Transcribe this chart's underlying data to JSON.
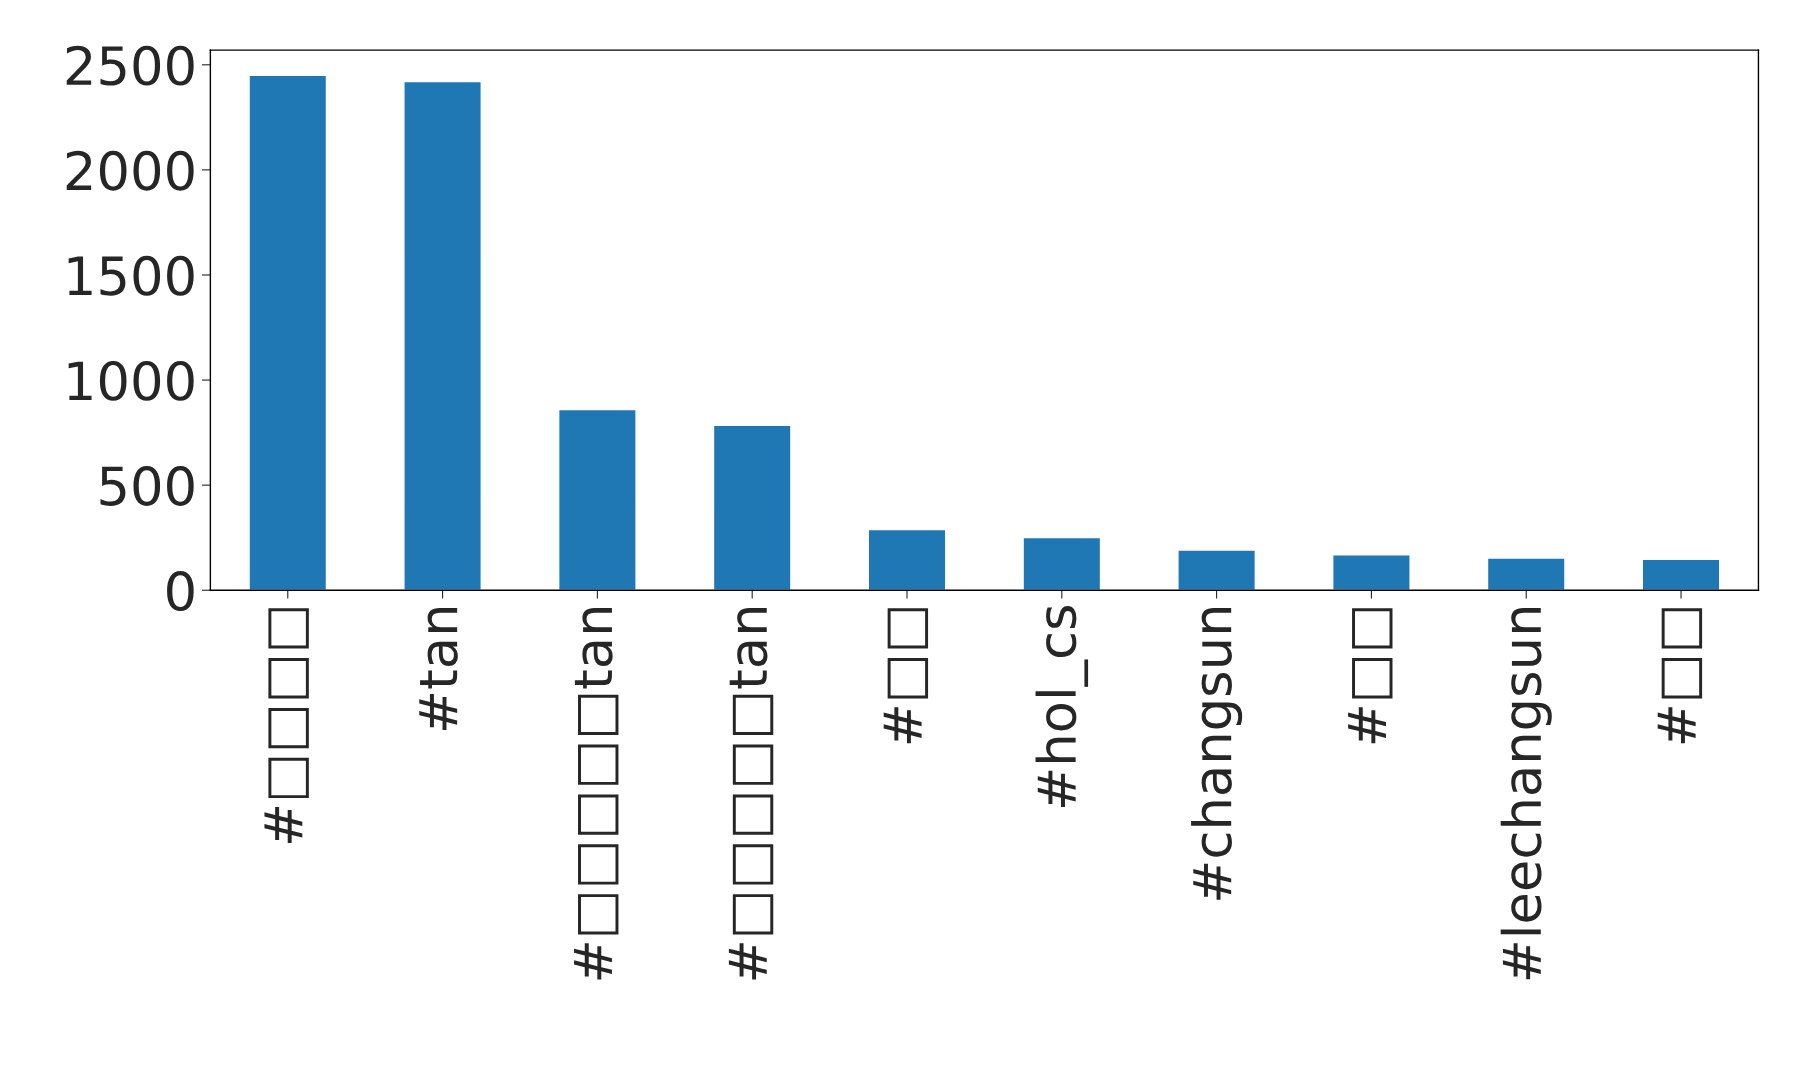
{
  "chart_data": {
    "type": "bar",
    "categories": [
      "#□□□□",
      "#tan",
      "#□□□□□tan",
      "#□□□□□tan",
      "#□□",
      "#hol_cs",
      "#changsun",
      "#□□",
      "#leechangsun",
      "#□□"
    ],
    "values": [
      2450,
      2420,
      860,
      785,
      289,
      251,
      191,
      169,
      153,
      147
    ],
    "color": "#1f77b4",
    "ylim": [
      0,
      2570
    ],
    "yticks": [
      0,
      500,
      1000,
      1500,
      2000,
      2500
    ],
    "grid": false
  }
}
